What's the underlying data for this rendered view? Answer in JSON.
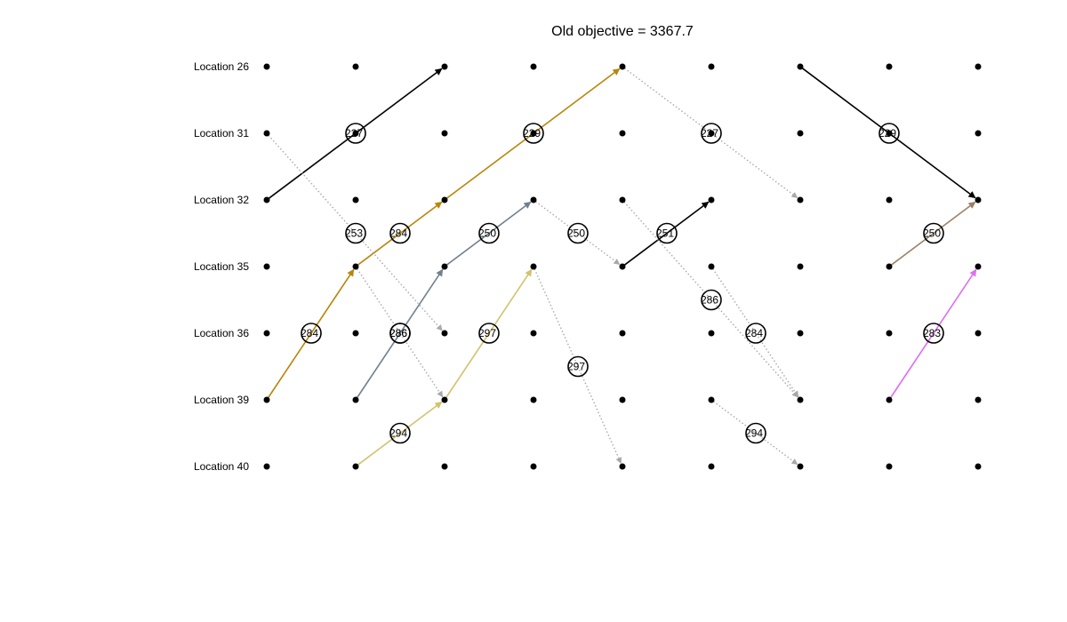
{
  "title": "Old objective = 3367.7",
  "locations": [
    "Location 26",
    "Location 31",
    "Location 32",
    "Location 35",
    "Location 36",
    "Location 39",
    "Location 40"
  ],
  "time_steps": 9,
  "colors": {
    "black": "#000000",
    "gold": "#b8860b",
    "slate": "#708090",
    "khaki": "#d2c26e",
    "taupe": "#9c8066",
    "violet": "#de6ef0",
    "dotted_gray": "#a9a9a9"
  },
  "edges": [
    {
      "from_step": 1,
      "from_loc": 2,
      "to_step": 3,
      "to_loc": 0,
      "color": "black",
      "style": "solid",
      "weight": "227"
    },
    {
      "from_step": 1,
      "from_loc": 5,
      "to_step": 2,
      "to_loc": 3,
      "color": "gold",
      "style": "solid",
      "weight": "284"
    },
    {
      "from_step": 2,
      "from_loc": 3,
      "to_step": 3,
      "to_loc": 2,
      "color": "gold",
      "style": "solid",
      "weight": "284"
    },
    {
      "from_step": 3,
      "from_loc": 2,
      "to_step": 5,
      "to_loc": 0,
      "color": "gold",
      "style": "solid",
      "weight": "229"
    },
    {
      "from_step": 2,
      "from_loc": 5,
      "to_step": 3,
      "to_loc": 3,
      "color": "slate",
      "style": "solid",
      "weight": "286"
    },
    {
      "from_step": 3,
      "from_loc": 3,
      "to_step": 4,
      "to_loc": 2,
      "color": "slate",
      "style": "solid",
      "weight": "250"
    },
    {
      "from_step": 2,
      "from_loc": 6,
      "to_step": 3,
      "to_loc": 5,
      "color": "khaki",
      "style": "solid",
      "weight": "294"
    },
    {
      "from_step": 3,
      "from_loc": 5,
      "to_step": 4,
      "to_loc": 3,
      "color": "khaki",
      "style": "solid",
      "weight": "297"
    },
    {
      "from_step": 5,
      "from_loc": 3,
      "to_step": 6,
      "to_loc": 2,
      "color": "black",
      "style": "solid",
      "weight": "251"
    },
    {
      "from_step": 7,
      "from_loc": 0,
      "to_step": 9,
      "to_loc": 2,
      "color": "black",
      "style": "solid",
      "weight": "229"
    },
    {
      "from_step": 8,
      "from_loc": 3,
      "to_step": 9,
      "to_loc": 2,
      "color": "taupe",
      "style": "solid",
      "weight": "250"
    },
    {
      "from_step": 8,
      "from_loc": 5,
      "to_step": 9,
      "to_loc": 3,
      "color": "violet",
      "style": "solid",
      "weight": "283"
    },
    {
      "from_step": 1,
      "from_loc": 1,
      "to_step": 3,
      "to_loc": 4,
      "color": "dotted_gray",
      "style": "dotted",
      "weight": "253"
    },
    {
      "from_step": 2,
      "from_loc": 3,
      "to_step": 3,
      "to_loc": 5,
      "color": "dotted_gray",
      "style": "dotted",
      "weight": "286"
    },
    {
      "from_step": 4,
      "from_loc": 2,
      "to_step": 5,
      "to_loc": 3,
      "color": "dotted_gray",
      "style": "dotted",
      "weight": "250"
    },
    {
      "from_step": 4,
      "from_loc": 3,
      "to_step": 5,
      "to_loc": 6,
      "color": "dotted_gray",
      "style": "dotted",
      "weight": "297"
    },
    {
      "from_step": 5,
      "from_loc": 0,
      "to_step": 7,
      "to_loc": 2,
      "color": "dotted_gray",
      "style": "dotted",
      "weight": "227"
    },
    {
      "from_step": 5,
      "from_loc": 2,
      "to_step": 7,
      "to_loc": 5,
      "color": "dotted_gray",
      "style": "dotted",
      "weight": "286"
    },
    {
      "from_step": 6,
      "from_loc": 3,
      "to_step": 7,
      "to_loc": 5,
      "color": "dotted_gray",
      "style": "dotted",
      "weight": "284"
    },
    {
      "from_step": 6,
      "from_loc": 5,
      "to_step": 7,
      "to_loc": 6,
      "color": "dotted_gray",
      "style": "dotted",
      "weight": "294"
    }
  ]
}
